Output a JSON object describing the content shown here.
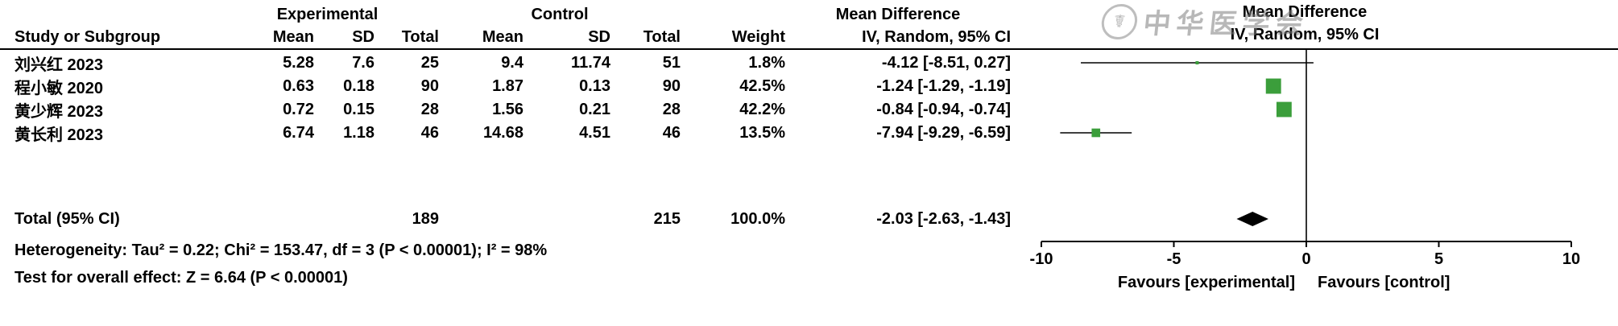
{
  "header": {
    "group_experimental": "Experimental",
    "group_control": "Control",
    "effect_label": "Mean Difference",
    "effect_sub": "IV, Random, 95% CI",
    "plot_effect_label": "Mean Difference",
    "plot_effect_sub": "IV, Random, 95% CI",
    "col_study": "Study or Subgroup",
    "col_mean": "Mean",
    "col_sd": "SD",
    "col_total": "Total",
    "col_weight": "Weight"
  },
  "watermark": {
    "text": "中华医学会",
    "seal_glyph": "☤"
  },
  "chart_data": {
    "type": "forest",
    "effect_measure": "Mean Difference",
    "model": "IV, Random, 95% CI",
    "xlim": [
      -10,
      10
    ],
    "tick_values": [
      -10,
      -5,
      0,
      5,
      10
    ],
    "ticks": [
      "-10",
      "-5",
      "0",
      "5",
      "10"
    ],
    "grid": false,
    "marker_color": "#3b9e3b",
    "diamond_color": "#000000",
    "favours_left": "Favours [experimental]",
    "favours_right": "Favours [control]",
    "studies": [
      {
        "name": "刘兴红 2023",
        "exp_mean": "5.28",
        "exp_sd": "7.6",
        "exp_total": "25",
        "ctl_mean": "9.4",
        "ctl_sd": "11.74",
        "ctl_total": "51",
        "weight": "1.8%",
        "ci_label": "-4.12 [-8.51, 0.27]",
        "est": -4.12,
        "lo": -8.51,
        "hi": 0.27,
        "weight_pct": 1.8
      },
      {
        "name": "程小敏 2020",
        "exp_mean": "0.63",
        "exp_sd": "0.18",
        "exp_total": "90",
        "ctl_mean": "1.87",
        "ctl_sd": "0.13",
        "ctl_total": "90",
        "weight": "42.5%",
        "ci_label": "-1.24 [-1.29, -1.19]",
        "est": -1.24,
        "lo": -1.29,
        "hi": -1.19,
        "weight_pct": 42.5
      },
      {
        "name": "黄少辉 2023",
        "exp_mean": "0.72",
        "exp_sd": "0.15",
        "exp_total": "28",
        "ctl_mean": "1.56",
        "ctl_sd": "0.21",
        "ctl_total": "28",
        "weight": "42.2%",
        "ci_label": "-0.84 [-0.94, -0.74]",
        "est": -0.84,
        "lo": -0.94,
        "hi": -0.74,
        "weight_pct": 42.2
      },
      {
        "name": "黄长利 2023",
        "exp_mean": "6.74",
        "exp_sd": "1.18",
        "exp_total": "46",
        "ctl_mean": "14.68",
        "ctl_sd": "4.51",
        "ctl_total": "46",
        "weight": "13.5%",
        "ci_label": "-7.94 [-9.29, -6.59]",
        "est": -7.94,
        "lo": -9.29,
        "hi": -6.59,
        "weight_pct": 13.5
      }
    ],
    "total": {
      "label": "Total (95% CI)",
      "exp_total": "189",
      "ctl_total": "215",
      "weight": "100.0%",
      "ci_label": "-2.03 [-2.63, -1.43]",
      "est": -2.03,
      "lo": -2.63,
      "hi": -1.43
    },
    "heterogeneity": "Heterogeneity: Tau² = 0.22; Chi² = 153.47, df = 3 (P < 0.00001); I² = 98%",
    "overall_effect": "Test for overall effect: Z = 6.64 (P < 0.00001)"
  }
}
